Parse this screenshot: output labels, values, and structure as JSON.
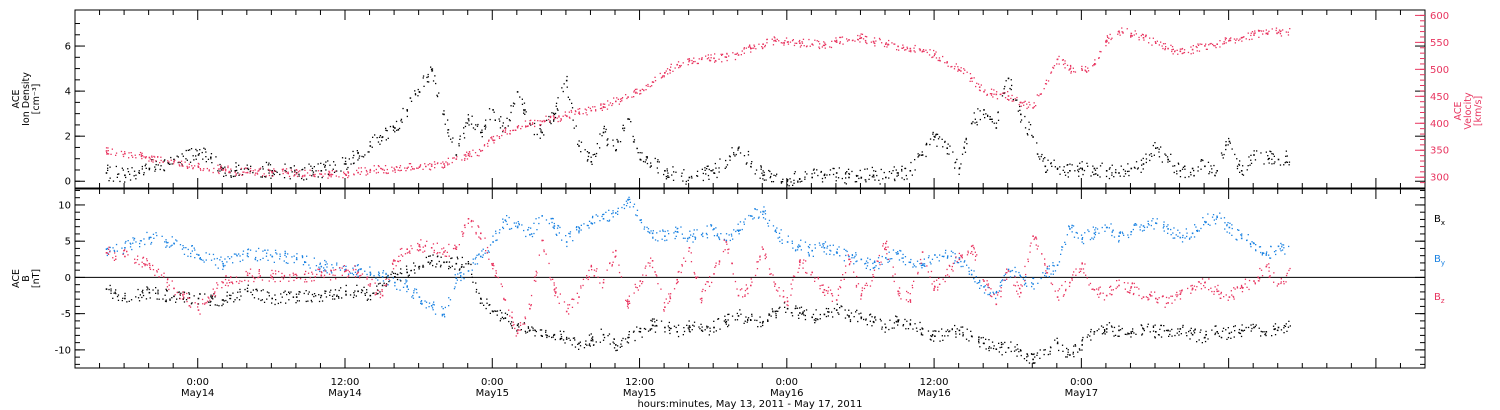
{
  "chart_data": [
    {
      "type": "scatter",
      "panel": "plasma",
      "ylabel_lines": [
        "ACE",
        "Ion Density",
        "[cm⁻³]"
      ],
      "y2label_lines": [
        "ACE",
        "Velocity",
        "[km/s]"
      ],
      "ylim": [
        -0.3,
        7.6
      ],
      "y2lim": [
        280,
        610
      ],
      "yticks": [
        "0",
        "2",
        "4",
        "6"
      ],
      "yticks_values": [
        0,
        2,
        4,
        6
      ],
      "y2ticks": [
        "300",
        "350",
        "400",
        "450",
        "500",
        "550",
        "600"
      ],
      "y2ticks_values": [
        300,
        350,
        400,
        450,
        500,
        550,
        600
      ],
      "series": [
        {
          "color": "#000000",
          "axis": "left",
          "x": [
            -7.5,
            -6,
            -4,
            -2,
            0,
            1,
            2,
            3,
            4,
            6,
            8,
            10,
            12,
            13,
            14,
            15,
            16,
            17,
            18,
            19,
            20,
            21,
            22,
            23,
            24,
            25,
            26,
            27,
            28,
            29,
            30,
            31,
            32,
            33,
            34,
            35,
            36,
            38,
            40,
            42,
            44,
            46,
            48,
            50,
            51,
            52,
            53,
            54,
            55,
            56,
            57,
            58,
            59,
            60,
            61,
            62,
            63,
            64,
            65,
            66,
            67,
            68,
            69,
            70,
            71,
            72,
            73,
            74,
            75,
            76,
            77,
            78,
            79,
            80,
            81,
            82,
            83,
            84,
            85,
            86,
            88,
            89
          ],
          "y": [
            0.4,
            0.3,
            0.6,
            1.0,
            1.2,
            1.1,
            0.6,
            0.5,
            0.6,
            0.5,
            0.4,
            0.5,
            0.8,
            1.3,
            1.6,
            2.0,
            2.4,
            3.2,
            4.0,
            5.0,
            3.0,
            1.2,
            2.8,
            2.2,
            3.2,
            2.4,
            4.0,
            2.6,
            2.2,
            3.0,
            4.5,
            1.6,
            0.9,
            2.2,
            1.4,
            2.8,
            1.0,
            0.5,
            0.2,
            0.4,
            1.5,
            0.3,
            0.1,
            0.2,
            0.3,
            0.4,
            0.2,
            0.2,
            0.3,
            0.2,
            0.4,
            0.5,
            1.2,
            2.0,
            1.5,
            0.6,
            2.6,
            3.2,
            2.4,
            4.6,
            3.0,
            2.0,
            0.7,
            0.6,
            0.5,
            0.6,
            0.6,
            0.5,
            0.4,
            0.6,
            0.8,
            1.5,
            1.0,
            0.5,
            0.6,
            0.7,
            0.5,
            1.8,
            0.5,
            1.2,
            1.0,
            1.1
          ]
        },
        {
          "color": "#e8345f",
          "axis": "right",
          "x": [
            -7.5,
            -6,
            -4,
            -2,
            0,
            2,
            4,
            6,
            8,
            10,
            12,
            13,
            14,
            15,
            16,
            17,
            18,
            19,
            20,
            21,
            22,
            23,
            24,
            25,
            26,
            27,
            28,
            29,
            30,
            31,
            32,
            33,
            34,
            35,
            36,
            37,
            38,
            39,
            40,
            41,
            42,
            43,
            44,
            45,
            46,
            47,
            48,
            49,
            50,
            51,
            52,
            53,
            54,
            55,
            56,
            57,
            58,
            59,
            60,
            61,
            62,
            63,
            64,
            65,
            66,
            67,
            68,
            70,
            71,
            72,
            73,
            74,
            75,
            76,
            77,
            78,
            79,
            80,
            81,
            82,
            83,
            84,
            85,
            86,
            87,
            88,
            89
          ],
          "y": [
            350,
            345,
            338,
            330,
            320,
            315,
            310,
            310,
            308,
            307,
            306,
            310,
            314,
            316,
            315,
            318,
            320,
            322,
            326,
            335,
            342,
            350,
            370,
            385,
            395,
            400,
            405,
            410,
            415,
            420,
            425,
            432,
            442,
            450,
            462,
            478,
            495,
            510,
            518,
            520,
            522,
            524,
            528,
            540,
            548,
            555,
            552,
            550,
            548,
            546,
            552,
            556,
            560,
            553,
            548,
            544,
            540,
            535,
            530,
            515,
            500,
            485,
            460,
            455,
            452,
            440,
            430,
            520,
            502,
            500,
            510,
            555,
            572,
            568,
            560,
            550,
            540,
            535,
            538,
            545,
            548,
            555,
            560,
            565,
            568,
            570,
            572
          ]
        }
      ]
    },
    {
      "type": "scatter",
      "panel": "magnetic-field",
      "ylabel_lines": [
        "ACE",
        "B",
        "[nT]"
      ],
      "ylim": [
        -12.5,
        12.2
      ],
      "yticks": [
        "-10",
        "-5",
        "0",
        "5",
        "10"
      ],
      "yticks_values": [
        -10,
        -5,
        0,
        5,
        10
      ],
      "zero_line": true,
      "series": [
        {
          "name": "B",
          "sub": "x",
          "color": "#000000",
          "x": [
            -7.5,
            -6,
            -4,
            -2,
            0,
            2,
            4,
            6,
            8,
            10,
            12,
            13,
            14,
            15,
            16,
            17,
            18,
            19,
            20,
            21,
            22,
            23,
            24,
            25,
            26,
            27,
            28,
            29,
            30,
            31,
            32,
            33,
            34,
            35,
            36,
            37,
            38,
            39,
            40,
            41,
            42,
            43,
            44,
            45,
            46,
            47,
            48,
            49,
            50,
            51,
            52,
            53,
            54,
            55,
            56,
            57,
            58,
            59,
            60,
            62,
            63,
            64,
            65,
            66,
            67,
            68,
            70,
            71,
            72,
            73,
            74,
            75,
            76,
            77,
            78,
            79,
            80,
            81,
            82,
            83,
            84,
            85,
            86,
            87,
            88,
            89
          ],
          "y": [
            -1.5,
            -2.8,
            -2.0,
            -2.5,
            -2.8,
            -3.0,
            -1.8,
            -2.8,
            -2.6,
            -2.4,
            -1.8,
            -1.8,
            -2.4,
            -1.0,
            0.2,
            0.8,
            1.6,
            2.4,
            2.2,
            2.0,
            2.0,
            -2.8,
            -4.6,
            -5.5,
            -6.5,
            -7.2,
            -8.0,
            -7.8,
            -8.4,
            -9.0,
            -8.6,
            -7.8,
            -9.2,
            -8.2,
            -7.4,
            -6.5,
            -6.8,
            -7.4,
            -6.6,
            -7.2,
            -6.8,
            -6.0,
            -5.2,
            -5.8,
            -6.0,
            -4.6,
            -4.2,
            -4.8,
            -5.4,
            -5.0,
            -4.4,
            -5.2,
            -5.4,
            -6.0,
            -6.8,
            -5.8,
            -6.4,
            -7.0,
            -8.0,
            -7.2,
            -8.0,
            -9.0,
            -9.8,
            -9.6,
            -10.0,
            -11.2,
            -9.0,
            -10.6,
            -9.2,
            -7.4,
            -7.0,
            -7.2,
            -7.6,
            -7.0,
            -7.4,
            -7.2,
            -7.0,
            -7.8,
            -8.2,
            -7.4,
            -7.6,
            -7.2,
            -6.8,
            -7.4,
            -6.8,
            -6.5
          ]
        },
        {
          "name": "B",
          "sub": "y",
          "color": "#1a82e2",
          "x": [
            -7.5,
            -6,
            -4,
            -2,
            0,
            2,
            4,
            6,
            8,
            10,
            12,
            13,
            14,
            15,
            16,
            17,
            18,
            19,
            20,
            21,
            22,
            23,
            24,
            25,
            26,
            27,
            28,
            29,
            30,
            31,
            32,
            33,
            34,
            35,
            36,
            37,
            38,
            39,
            40,
            41,
            42,
            43,
            44,
            45,
            46,
            47,
            48,
            49,
            50,
            51,
            52,
            53,
            54,
            55,
            56,
            57,
            58,
            59,
            60,
            62,
            63,
            64,
            65,
            66,
            67,
            68,
            70,
            71,
            72,
            73,
            74,
            75,
            76,
            77,
            78,
            79,
            80,
            81,
            82,
            83,
            84,
            85,
            86,
            87,
            88,
            89
          ],
          "y": [
            4.0,
            4.2,
            5.6,
            4.8,
            3.2,
            2.0,
            3.4,
            3.0,
            2.6,
            1.6,
            1.2,
            1.0,
            0.8,
            0.2,
            -0.6,
            -1.2,
            -2.6,
            -3.8,
            -5.0,
            0.0,
            1.0,
            3.0,
            5.0,
            8.0,
            7.0,
            6.0,
            8.6,
            7.2,
            5.0,
            6.5,
            7.6,
            8.2,
            9.0,
            10.8,
            8.0,
            6.2,
            5.8,
            6.4,
            5.6,
            6.0,
            6.8,
            5.2,
            6.6,
            8.6,
            9.2,
            6.5,
            5.0,
            4.4,
            3.8,
            4.2,
            3.6,
            3.0,
            2.6,
            1.4,
            2.8,
            3.4,
            2.2,
            1.8,
            3.2,
            2.8,
            0.5,
            -1.2,
            -2.0,
            1.2,
            0.2,
            -0.8,
            1.8,
            6.8,
            5.4,
            6.2,
            7.0,
            5.8,
            6.4,
            7.2,
            7.6,
            6.8,
            5.6,
            6.2,
            7.8,
            8.4,
            7.0,
            5.5,
            4.8,
            3.2,
            4.4,
            4.0
          ]
        },
        {
          "name": "B",
          "sub": "z",
          "color": "#e8345f",
          "x": [
            -7.5,
            -6,
            -4,
            -2,
            0,
            2,
            4,
            6,
            8,
            10,
            12,
            13,
            14,
            15,
            16,
            17,
            18,
            19,
            20,
            21,
            22,
            23,
            24,
            25,
            26,
            27,
            28,
            29,
            30,
            31,
            32,
            33,
            34,
            35,
            36,
            37,
            38,
            39,
            40,
            41,
            42,
            43,
            44,
            45,
            46,
            47,
            48,
            49,
            50,
            51,
            52,
            53,
            54,
            55,
            56,
            57,
            58,
            59,
            60,
            62,
            63,
            64,
            65,
            66,
            67,
            68,
            70,
            71,
            72,
            73,
            74,
            75,
            76,
            77,
            78,
            79,
            80,
            81,
            82,
            83,
            84,
            85,
            86,
            87,
            88,
            89
          ],
          "y": [
            3.5,
            3.0,
            2.0,
            -1.4,
            -4.4,
            -0.6,
            0.4,
            0.2,
            0.0,
            0.4,
            1.0,
            0.8,
            -0.8,
            -2.4,
            2.4,
            4.0,
            4.6,
            4.2,
            3.6,
            4.0,
            8.2,
            6.2,
            2.0,
            -3.0,
            -7.6,
            -4.2,
            5.2,
            -1.6,
            -4.6,
            -2.6,
            1.6,
            -0.6,
            3.8,
            -3.6,
            -0.4,
            2.4,
            -4.0,
            -0.2,
            4.2,
            -2.8,
            0.6,
            5.0,
            -2.4,
            -1.0,
            4.0,
            -0.8,
            -3.2,
            2.2,
            0.8,
            -1.6,
            -3.0,
            2.6,
            -2.4,
            0.2,
            4.8,
            -1.8,
            -3.0,
            3.6,
            -1.2,
            2.6,
            4.4,
            -0.4,
            -3.6,
            1.0,
            -2.0,
            5.8,
            -2.6,
            -0.6,
            2.0,
            -1.6,
            -2.4,
            -1.0,
            -1.2,
            -2.6,
            -2.8,
            -3.4,
            -2.2,
            -1.4,
            -0.6,
            -1.8,
            -2.6,
            -1.2,
            -0.4,
            1.6,
            -0.8,
            0.8
          ]
        }
      ]
    }
  ],
  "xaxis": {
    "xlim": [
      -10,
      100
    ],
    "units": "hours since 2011-05-14 00:00",
    "ticks": [
      {
        "x": 0,
        "time": "0:00",
        "date": "May14"
      },
      {
        "x": 12,
        "time": "12:00",
        "date": "May14"
      },
      {
        "x": 24,
        "time": "0:00",
        "date": "May15"
      },
      {
        "x": 36,
        "time": "12:00",
        "date": "May15"
      },
      {
        "x": 48,
        "time": "0:00",
        "date": "May16"
      },
      {
        "x": 60,
        "time": "12:00",
        "date": "May16"
      },
      {
        "x": 72,
        "time": "0:00",
        "date": "May17"
      }
    ],
    "label": "hours:minutes, May 13, 2011 - May 17, 2011"
  },
  "legend": {
    "items": [
      {
        "base": "B",
        "sub": "x",
        "color": "#000000"
      },
      {
        "base": "B",
        "sub": "y",
        "color": "#1a82e2"
      },
      {
        "base": "B",
        "sub": "z",
        "color": "#e8345f"
      }
    ]
  }
}
